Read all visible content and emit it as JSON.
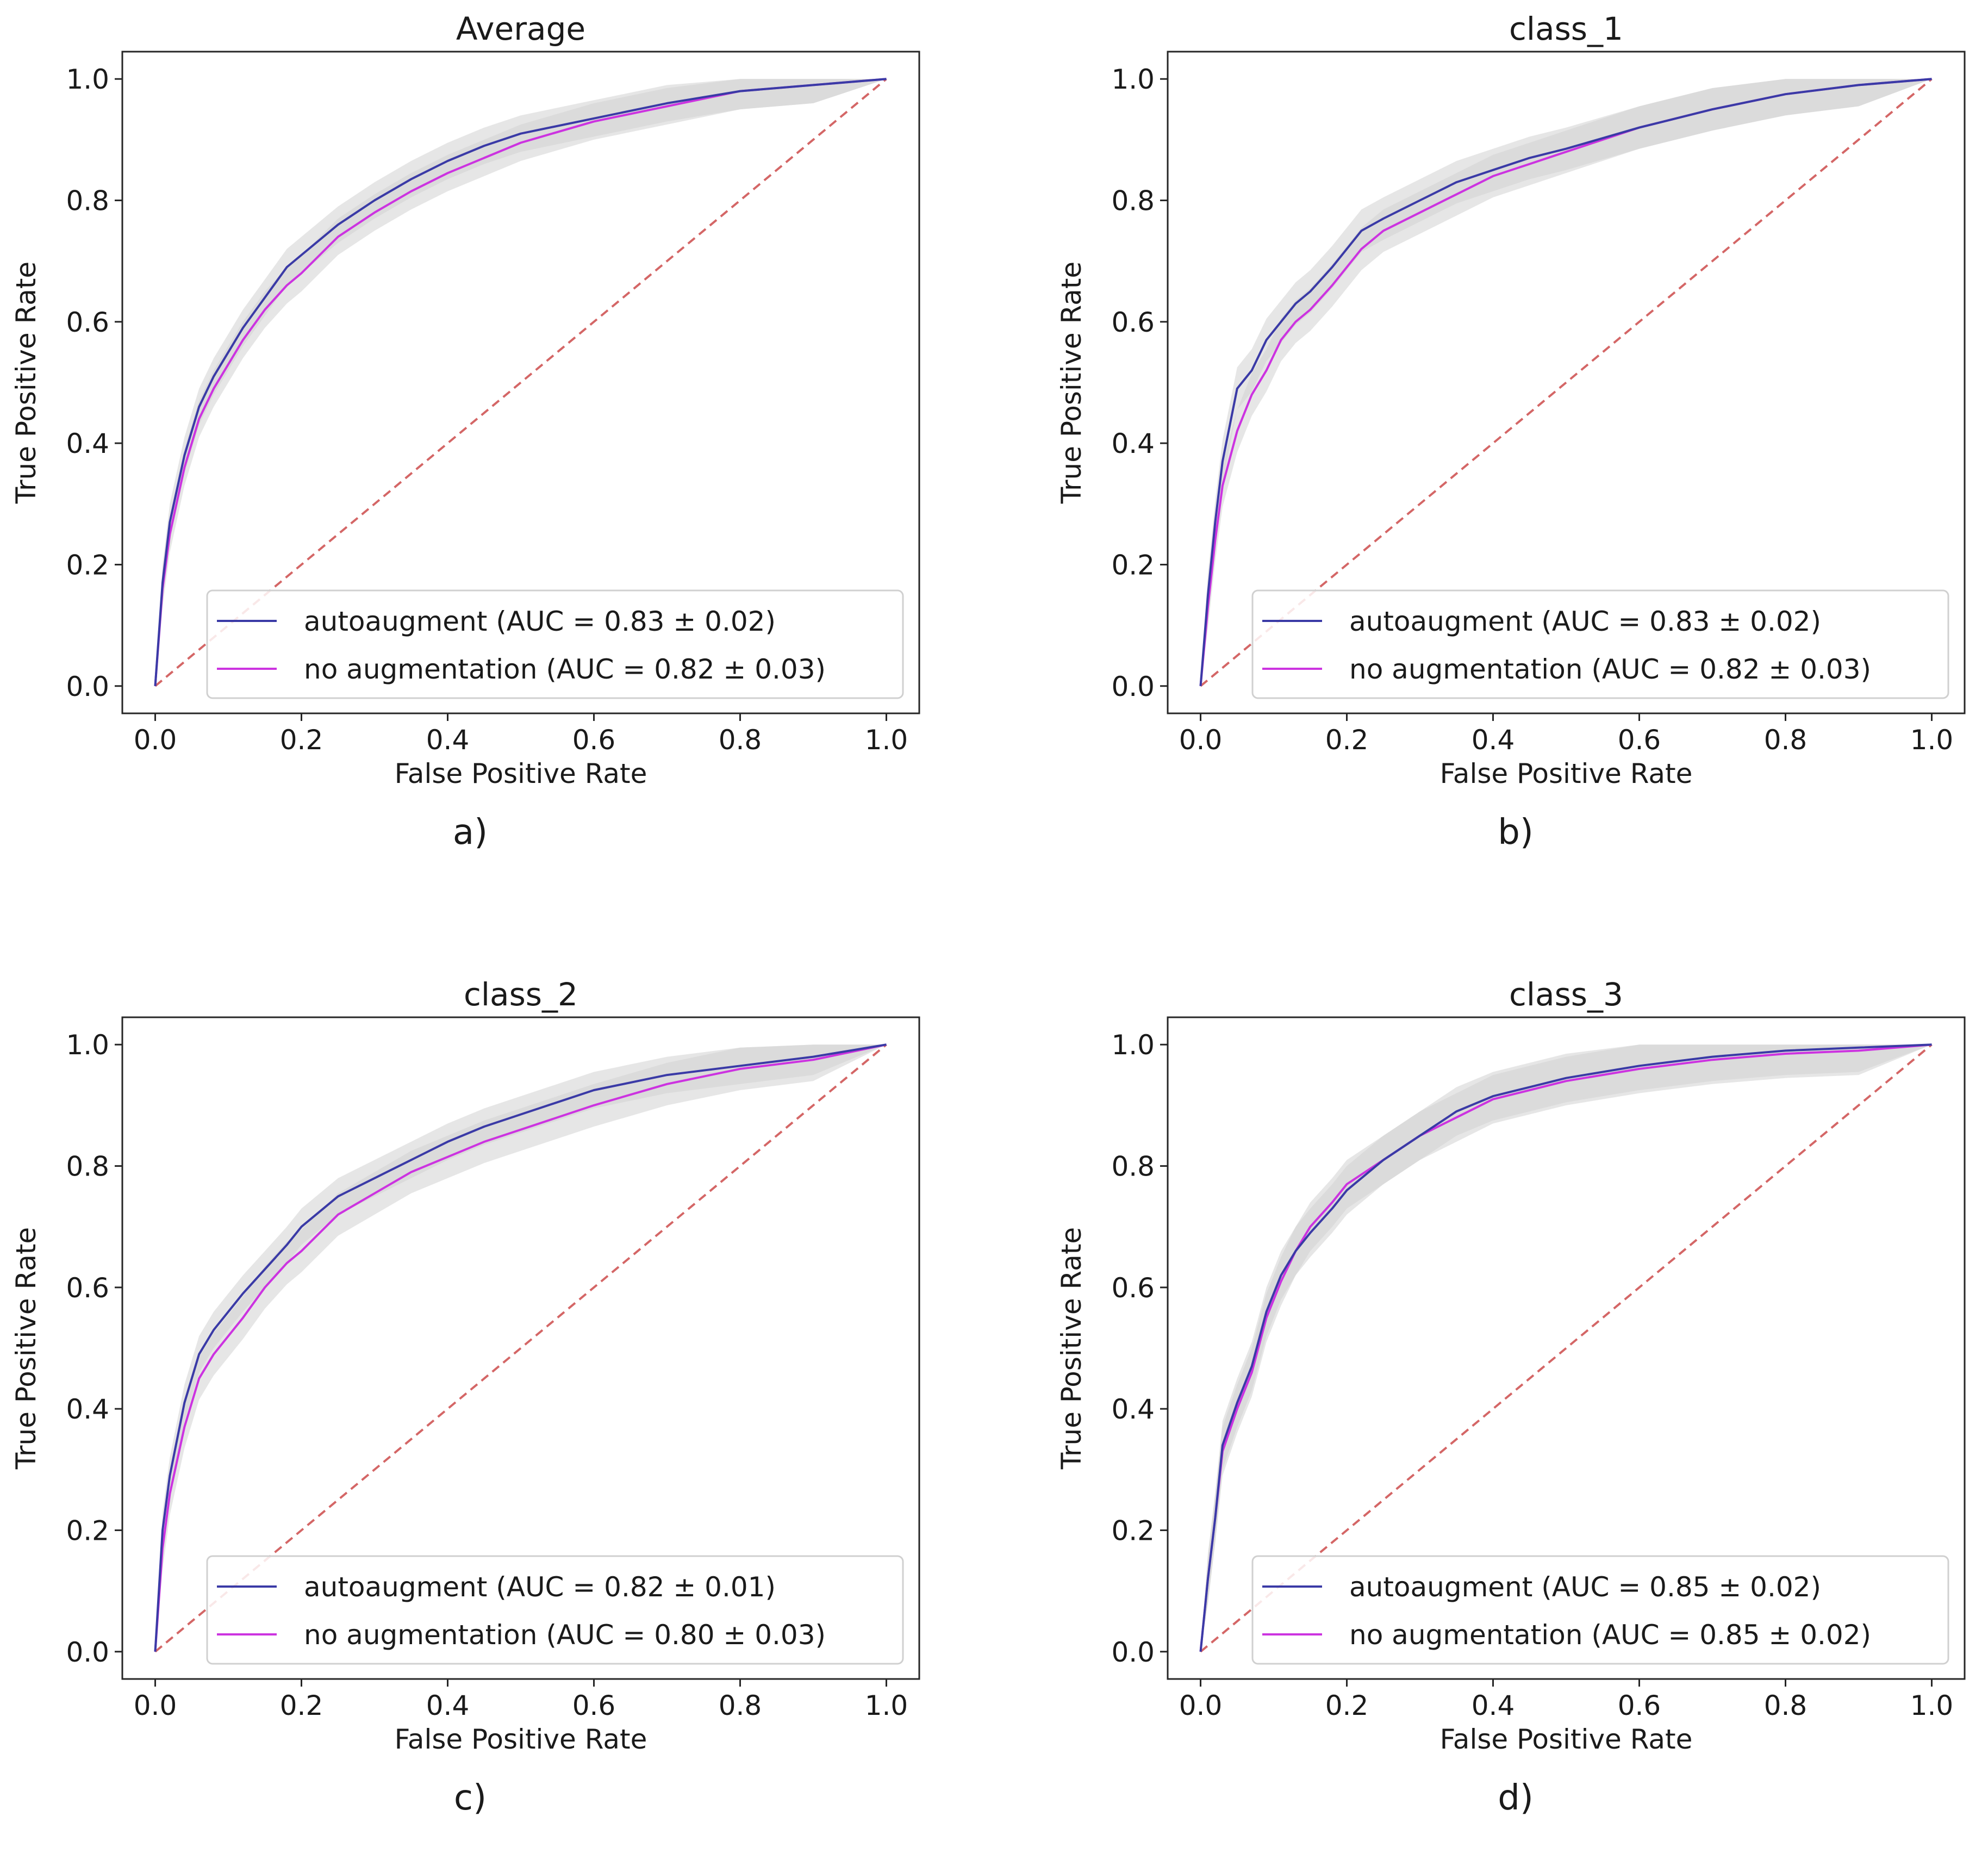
{
  "colors": {
    "auto": "#3a3aa6",
    "noaug": "#cc33e0",
    "chance": "#d46666",
    "band": "#d2d2d2",
    "axis": "#262626"
  },
  "chart_data": [
    {
      "type": "line",
      "title": "Average",
      "panel_label": "a)",
      "xlabel": "False Positive Rate",
      "ylabel": "True Positive Rate",
      "xlim": [
        0,
        1
      ],
      "ylim": [
        0,
        1
      ],
      "xticks": [
        0,
        0.2,
        0.4,
        0.6,
        0.8,
        1.0
      ],
      "yticks": [
        0,
        0.2,
        0.4,
        0.6,
        0.8,
        1.0
      ],
      "tick_labels": [
        "0.0",
        "0.2",
        "0.4",
        "0.6",
        "0.8",
        "1.0"
      ],
      "legend_position": "lower-right",
      "chance_line": {
        "x": [
          0,
          1
        ],
        "y": [
          0,
          1
        ],
        "style": "dashed"
      },
      "series": [
        {
          "name": "autoaugment",
          "legend": "autoaugment (AUC = 0.83 ± 0.02)",
          "color_key": "auto",
          "x": [
            0,
            0.01,
            0.02,
            0.04,
            0.06,
            0.08,
            0.1,
            0.12,
            0.15,
            0.18,
            0.2,
            0.25,
            0.3,
            0.35,
            0.4,
            0.45,
            0.5,
            0.6,
            0.7,
            0.8,
            0.9,
            1.0
          ],
          "y": [
            0,
            0.17,
            0.27,
            0.38,
            0.46,
            0.51,
            0.55,
            0.59,
            0.64,
            0.69,
            0.71,
            0.76,
            0.8,
            0.835,
            0.865,
            0.89,
            0.91,
            0.935,
            0.96,
            0.98,
            0.99,
            1.0
          ],
          "band": 0.03
        },
        {
          "name": "no augmentation",
          "legend": "no augmentation (AUC = 0.82 ± 0.03)",
          "color_key": "noaug",
          "x": [
            0,
            0.01,
            0.02,
            0.04,
            0.06,
            0.08,
            0.1,
            0.12,
            0.15,
            0.18,
            0.2,
            0.25,
            0.3,
            0.35,
            0.4,
            0.45,
            0.5,
            0.6,
            0.7,
            0.8,
            0.9,
            1.0
          ],
          "y": [
            0,
            0.16,
            0.25,
            0.36,
            0.44,
            0.49,
            0.53,
            0.57,
            0.62,
            0.66,
            0.68,
            0.74,
            0.78,
            0.815,
            0.845,
            0.87,
            0.895,
            0.93,
            0.955,
            0.98,
            0.99,
            1.0
          ],
          "band": 0.03
        }
      ]
    },
    {
      "type": "line",
      "title": "class_1",
      "panel_label": "b)",
      "xlabel": "False Positive Rate",
      "ylabel": "True Positive Rate",
      "xlim": [
        0,
        1
      ],
      "ylim": [
        0,
        1
      ],
      "xticks": [
        0,
        0.2,
        0.4,
        0.6,
        0.8,
        1.0
      ],
      "yticks": [
        0,
        0.2,
        0.4,
        0.6,
        0.8,
        1.0
      ],
      "tick_labels": [
        "0.0",
        "0.2",
        "0.4",
        "0.6",
        "0.8",
        "1.0"
      ],
      "legend_position": "lower-right",
      "chance_line": {
        "x": [
          0,
          1
        ],
        "y": [
          0,
          1
        ],
        "style": "dashed"
      },
      "series": [
        {
          "name": "autoaugment",
          "legend": "autoaugment (AUC = 0.83 ± 0.02)",
          "color_key": "auto",
          "x": [
            0,
            0.01,
            0.02,
            0.03,
            0.05,
            0.07,
            0.09,
            0.11,
            0.13,
            0.15,
            0.18,
            0.2,
            0.22,
            0.25,
            0.3,
            0.35,
            0.4,
            0.45,
            0.5,
            0.6,
            0.7,
            0.8,
            0.9,
            1.0
          ],
          "y": [
            0,
            0.15,
            0.27,
            0.37,
            0.49,
            0.52,
            0.57,
            0.6,
            0.63,
            0.65,
            0.69,
            0.72,
            0.75,
            0.77,
            0.8,
            0.83,
            0.85,
            0.87,
            0.885,
            0.92,
            0.95,
            0.975,
            0.99,
            1.0
          ],
          "band": 0.035
        },
        {
          "name": "no augmentation",
          "legend": "no augmentation (AUC = 0.82 ± 0.03)",
          "color_key": "noaug",
          "x": [
            0,
            0.01,
            0.02,
            0.03,
            0.05,
            0.07,
            0.09,
            0.11,
            0.13,
            0.15,
            0.18,
            0.2,
            0.22,
            0.25,
            0.3,
            0.35,
            0.4,
            0.45,
            0.5,
            0.6,
            0.7,
            0.8,
            0.9,
            1.0
          ],
          "y": [
            0,
            0.13,
            0.24,
            0.33,
            0.42,
            0.48,
            0.52,
            0.57,
            0.6,
            0.62,
            0.66,
            0.69,
            0.72,
            0.75,
            0.78,
            0.81,
            0.84,
            0.86,
            0.88,
            0.92,
            0.95,
            0.975,
            0.99,
            1.0
          ],
          "band": 0.035
        }
      ]
    },
    {
      "type": "line",
      "title": "class_2",
      "panel_label": "c)",
      "xlabel": "False Positive Rate",
      "ylabel": "True Positive Rate",
      "xlim": [
        0,
        1
      ],
      "ylim": [
        0,
        1
      ],
      "xticks": [
        0,
        0.2,
        0.4,
        0.6,
        0.8,
        1.0
      ],
      "yticks": [
        0,
        0.2,
        0.4,
        0.6,
        0.8,
        1.0
      ],
      "tick_labels": [
        "0.0",
        "0.2",
        "0.4",
        "0.6",
        "0.8",
        "1.0"
      ],
      "legend_position": "lower-right",
      "chance_line": {
        "x": [
          0,
          1
        ],
        "y": [
          0,
          1
        ],
        "style": "dashed"
      },
      "series": [
        {
          "name": "autoaugment",
          "legend": "autoaugment (AUC = 0.82 ± 0.01)",
          "color_key": "auto",
          "x": [
            0,
            0.01,
            0.02,
            0.04,
            0.06,
            0.08,
            0.1,
            0.12,
            0.15,
            0.18,
            0.2,
            0.25,
            0.3,
            0.35,
            0.4,
            0.45,
            0.5,
            0.6,
            0.7,
            0.8,
            0.9,
            1.0
          ],
          "y": [
            0,
            0.2,
            0.29,
            0.41,
            0.49,
            0.53,
            0.56,
            0.59,
            0.63,
            0.67,
            0.7,
            0.75,
            0.78,
            0.81,
            0.84,
            0.865,
            0.885,
            0.925,
            0.95,
            0.965,
            0.98,
            1.0
          ],
          "band": 0.03
        },
        {
          "name": "no augmentation",
          "legend": "no augmentation (AUC = 0.80 ± 0.03)",
          "color_key": "noaug",
          "x": [
            0,
            0.01,
            0.02,
            0.04,
            0.06,
            0.08,
            0.1,
            0.12,
            0.15,
            0.18,
            0.2,
            0.25,
            0.3,
            0.35,
            0.4,
            0.45,
            0.5,
            0.6,
            0.7,
            0.8,
            0.9,
            1.0
          ],
          "y": [
            0,
            0.17,
            0.26,
            0.37,
            0.45,
            0.49,
            0.52,
            0.55,
            0.6,
            0.64,
            0.66,
            0.72,
            0.755,
            0.79,
            0.815,
            0.84,
            0.86,
            0.9,
            0.935,
            0.96,
            0.975,
            1.0
          ],
          "band": 0.035
        }
      ]
    },
    {
      "type": "line",
      "title": "class_3",
      "panel_label": "d)",
      "xlabel": "False Positive Rate",
      "ylabel": "True Positive Rate",
      "xlim": [
        0,
        1
      ],
      "ylim": [
        0,
        1
      ],
      "xticks": [
        0,
        0.2,
        0.4,
        0.6,
        0.8,
        1.0
      ],
      "yticks": [
        0,
        0.2,
        0.4,
        0.6,
        0.8,
        1.0
      ],
      "tick_labels": [
        "0.0",
        "0.2",
        "0.4",
        "0.6",
        "0.8",
        "1.0"
      ],
      "legend_position": "lower-right",
      "chance_line": {
        "x": [
          0,
          1
        ],
        "y": [
          0,
          1
        ],
        "style": "dashed"
      },
      "series": [
        {
          "name": "autoaugment",
          "legend": "autoaugment (AUC = 0.85 ± 0.02)",
          "color_key": "auto",
          "x": [
            0,
            0.01,
            0.02,
            0.03,
            0.05,
            0.07,
            0.09,
            0.11,
            0.13,
            0.15,
            0.18,
            0.2,
            0.25,
            0.3,
            0.35,
            0.4,
            0.45,
            0.5,
            0.6,
            0.7,
            0.8,
            0.9,
            1.0
          ],
          "y": [
            0,
            0.12,
            0.22,
            0.34,
            0.41,
            0.47,
            0.56,
            0.62,
            0.66,
            0.69,
            0.73,
            0.76,
            0.81,
            0.85,
            0.89,
            0.915,
            0.93,
            0.945,
            0.965,
            0.98,
            0.99,
            0.995,
            1.0
          ],
          "band": 0.04
        },
        {
          "name": "no augmentation",
          "legend": "no augmentation (AUC = 0.85 ± 0.02)",
          "color_key": "noaug",
          "x": [
            0,
            0.01,
            0.02,
            0.03,
            0.05,
            0.07,
            0.09,
            0.11,
            0.13,
            0.15,
            0.18,
            0.2,
            0.25,
            0.3,
            0.35,
            0.4,
            0.45,
            0.5,
            0.6,
            0.7,
            0.8,
            0.9,
            1.0
          ],
          "y": [
            0,
            0.12,
            0.22,
            0.33,
            0.4,
            0.46,
            0.55,
            0.61,
            0.66,
            0.7,
            0.74,
            0.77,
            0.81,
            0.85,
            0.88,
            0.91,
            0.925,
            0.94,
            0.96,
            0.975,
            0.985,
            0.99,
            1.0
          ],
          "band": 0.04
        }
      ]
    }
  ]
}
